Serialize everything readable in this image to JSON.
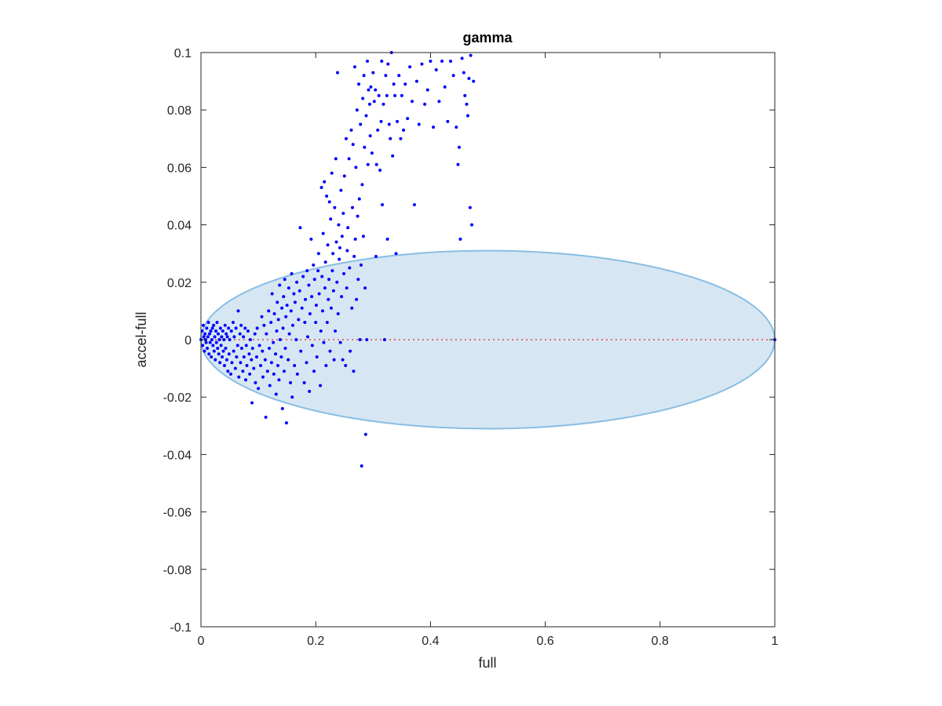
{
  "chart_data": {
    "type": "scatter",
    "title": "gamma",
    "xlabel": "full",
    "ylabel": "accel-full",
    "xlim": [
      0,
      1
    ],
    "ylim": [
      -0.1,
      0.1
    ],
    "xticks": [
      "0",
      "0.2",
      "0.4",
      "0.6",
      "0.8",
      "1"
    ],
    "yticks": [
      "-0.1",
      "-0.08",
      "-0.06",
      "-0.04",
      "-0.02",
      "0",
      "0.02",
      "0.04",
      "0.06",
      "0.08",
      "0.1"
    ],
    "grid": false,
    "legend": "none",
    "colors": {
      "points": "#0000ff",
      "ellipse_fill": "#d6e7f3",
      "ellipse_edge": "#88bde3",
      "reference_line": "#e8463f",
      "axes": "#262626"
    },
    "ellipse": {
      "center": [
        0.5,
        0
      ],
      "x_radius": 0.5,
      "y_radius": 0.031
    },
    "reference_line": {
      "y": 0,
      "x_range": [
        0,
        1
      ],
      "style": "dotted"
    },
    "points": [
      [
        0.0,
        0.0
      ],
      [
        0.002,
        0.003
      ],
      [
        0.003,
        -0.002
      ],
      [
        0.004,
        0.005
      ],
      [
        0.005,
        0.001
      ],
      [
        0.006,
        -0.004
      ],
      [
        0.007,
        0.002
      ],
      [
        0.008,
        0.0
      ],
      [
        0.009,
        -0.001
      ],
      [
        0.01,
        0.004
      ],
      [
        0.011,
        -0.003
      ],
      [
        0.012,
        0.001
      ],
      [
        0.013,
        0.006
      ],
      [
        0.014,
        -0.005
      ],
      [
        0.015,
        0.002
      ],
      [
        0.016,
        -0.001
      ],
      [
        0.017,
        0.003
      ],
      [
        0.018,
        -0.006
      ],
      [
        0.019,
        0.0
      ],
      [
        0.02,
        0.004
      ],
      [
        0.021,
        -0.002
      ],
      [
        0.022,
        0.005
      ],
      [
        0.023,
        -0.004
      ],
      [
        0.024,
        0.001
      ],
      [
        0.025,
        -0.007
      ],
      [
        0.026,
        0.003
      ],
      [
        0.027,
        -0.001
      ],
      [
        0.028,
        0.006
      ],
      [
        0.029,
        -0.003
      ],
      [
        0.03,
        0.002
      ],
      [
        0.031,
        -0.005
      ],
      [
        0.032,
        0.0
      ],
      [
        0.033,
        -0.008
      ],
      [
        0.034,
        0.004
      ],
      [
        0.035,
        -0.002
      ],
      [
        0.036,
        0.001
      ],
      [
        0.037,
        -0.006
      ],
      [
        0.038,
        0.003
      ],
      [
        0.039,
        -0.004
      ],
      [
        0.04,
        0.0
      ],
      [
        0.041,
        -0.009
      ],
      [
        0.042,
        0.005
      ],
      [
        0.043,
        -0.003
      ],
      [
        0.044,
        0.002
      ],
      [
        0.045,
        -0.007
      ],
      [
        0.046,
        0.001
      ],
      [
        0.047,
        -0.011
      ],
      [
        0.048,
        0.004
      ],
      [
        0.049,
        -0.005
      ],
      [
        0.05,
        0.0
      ],
      [
        0.052,
        -0.012
      ],
      [
        0.053,
        0.003
      ],
      [
        0.054,
        -0.008
      ],
      [
        0.056,
        0.006
      ],
      [
        0.057,
        -0.004
      ],
      [
        0.058,
        0.001
      ],
      [
        0.06,
        -0.01
      ],
      [
        0.061,
        0.004
      ],
      [
        0.062,
        -0.006
      ],
      [
        0.064,
        -0.002
      ],
      [
        0.065,
        0.01
      ],
      [
        0.066,
        -0.013
      ],
      [
        0.068,
        0.002
      ],
      [
        0.069,
        -0.008
      ],
      [
        0.07,
        0.005
      ],
      [
        0.071,
        -0.003
      ],
      [
        0.073,
        -0.011
      ],
      [
        0.074,
        0.001
      ],
      [
        0.075,
        -0.006
      ],
      [
        0.077,
        0.004
      ],
      [
        0.078,
        -0.014
      ],
      [
        0.079,
        -0.002
      ],
      [
        0.08,
        -0.009
      ],
      [
        0.082,
        0.003
      ],
      [
        0.084,
        -0.005
      ],
      [
        0.085,
        -0.012
      ],
      [
        0.086,
        0.0
      ],
      [
        0.088,
        -0.007
      ],
      [
        0.089,
        -0.022
      ],
      [
        0.09,
        -0.003
      ],
      [
        0.092,
        -0.01
      ],
      [
        0.094,
        0.002
      ],
      [
        0.095,
        -0.015
      ],
      [
        0.097,
        -0.006
      ],
      [
        0.098,
        0.004
      ],
      [
        0.1,
        -0.017
      ],
      [
        0.102,
        -0.002
      ],
      [
        0.104,
        -0.009
      ],
      [
        0.106,
        0.008
      ],
      [
        0.107,
        -0.004
      ],
      [
        0.108,
        -0.013
      ],
      [
        0.11,
        0.005
      ],
      [
        0.112,
        -0.007
      ],
      [
        0.113,
        -0.027
      ],
      [
        0.114,
        0.002
      ],
      [
        0.116,
        -0.011
      ],
      [
        0.118,
        0.01
      ],
      [
        0.119,
        -0.003
      ],
      [
        0.12,
        -0.016
      ],
      [
        0.122,
        0.006
      ],
      [
        0.123,
        -0.008
      ],
      [
        0.124,
        0.016
      ],
      [
        0.126,
        -0.001
      ],
      [
        0.127,
        -0.012
      ],
      [
        0.128,
        0.009
      ],
      [
        0.13,
        -0.005
      ],
      [
        0.131,
        -0.019
      ],
      [
        0.132,
        0.003
      ],
      [
        0.133,
        0.013
      ],
      [
        0.134,
        -0.009
      ],
      [
        0.135,
        0.007
      ],
      [
        0.136,
        -0.014
      ],
      [
        0.137,
        0.019
      ],
      [
        0.138,
        0.0
      ],
      [
        0.14,
        -0.006
      ],
      [
        0.141,
        0.011
      ],
      [
        0.142,
        -0.024
      ],
      [
        0.143,
        0.004
      ],
      [
        0.144,
        0.015
      ],
      [
        0.145,
        -0.011
      ],
      [
        0.146,
        0.021
      ],
      [
        0.147,
        -0.003
      ],
      [
        0.148,
        0.008
      ],
      [
        0.149,
        -0.029
      ],
      [
        0.15,
        0.012
      ],
      [
        0.152,
        -0.007
      ],
      [
        0.153,
        0.018
      ],
      [
        0.154,
        0.002
      ],
      [
        0.156,
        -0.015
      ],
      [
        0.157,
        0.01
      ],
      [
        0.158,
        0.023
      ],
      [
        0.159,
        -0.02
      ],
      [
        0.16,
        0.005
      ],
      [
        0.162,
        0.016
      ],
      [
        0.163,
        -0.009
      ],
      [
        0.164,
        0.013
      ],
      [
        0.166,
        0.0
      ],
      [
        0.167,
        0.02
      ],
      [
        0.168,
        -0.012
      ],
      [
        0.17,
        0.007
      ],
      [
        0.172,
        0.017
      ],
      [
        0.173,
        0.039
      ],
      [
        0.174,
        -0.004
      ],
      [
        0.176,
        0.011
      ],
      [
        0.178,
        0.022
      ],
      [
        0.18,
        -0.015
      ],
      [
        0.181,
        0.006
      ],
      [
        0.182,
        0.014
      ],
      [
        0.184,
        -0.008
      ],
      [
        0.185,
        0.024
      ],
      [
        0.186,
        0.001
      ],
      [
        0.188,
        0.019
      ],
      [
        0.189,
        -0.018
      ],
      [
        0.19,
        0.009
      ],
      [
        0.192,
        0.035
      ],
      [
        0.193,
        0.015
      ],
      [
        0.194,
        -0.002
      ],
      [
        0.196,
        0.026
      ],
      [
        0.197,
        -0.011
      ],
      [
        0.198,
        0.021
      ],
      [
        0.2,
        0.006
      ],
      [
        0.201,
        0.012
      ],
      [
        0.202,
        -0.006
      ],
      [
        0.204,
        0.024
      ],
      [
        0.205,
        0.03
      ],
      [
        0.206,
        0.016
      ],
      [
        0.208,
        -0.016
      ],
      [
        0.209,
        0.003
      ],
      [
        0.21,
        0.053
      ],
      [
        0.211,
        0.022
      ],
      [
        0.212,
        0.01
      ],
      [
        0.213,
        0.037
      ],
      [
        0.214,
        -0.001
      ],
      [
        0.215,
        0.055
      ],
      [
        0.216,
        0.018
      ],
      [
        0.217,
        0.027
      ],
      [
        0.218,
        -0.009
      ],
      [
        0.219,
        0.05
      ],
      [
        0.22,
        0.006
      ],
      [
        0.221,
        0.033
      ],
      [
        0.222,
        0.014
      ],
      [
        0.223,
        0.021
      ],
      [
        0.224,
        0.048
      ],
      [
        0.225,
        -0.004
      ],
      [
        0.226,
        0.042
      ],
      [
        0.227,
        0.011
      ],
      [
        0.228,
        0.058
      ],
      [
        0.229,
        0.024
      ],
      [
        0.23,
        0.03
      ],
      [
        0.231,
        0.017
      ],
      [
        0.232,
        -0.007
      ],
      [
        0.233,
        0.046
      ],
      [
        0.234,
        0.003
      ],
      [
        0.235,
        0.063
      ],
      [
        0.236,
        0.034
      ],
      [
        0.237,
        0.02
      ],
      [
        0.238,
        0.093
      ],
      [
        0.239,
        0.009
      ],
      [
        0.24,
        0.04
      ],
      [
        0.241,
        0.028
      ],
      [
        0.242,
        0.032
      ],
      [
        0.243,
        -0.001
      ],
      [
        0.244,
        0.052
      ],
      [
        0.245,
        0.015
      ],
      [
        0.246,
        0.036
      ],
      [
        0.247,
        -0.007
      ],
      [
        0.248,
        0.044
      ],
      [
        0.249,
        0.023
      ],
      [
        0.25,
        0.057
      ],
      [
        0.252,
        -0.009
      ],
      [
        0.253,
        0.07
      ],
      [
        0.254,
        0.018
      ],
      [
        0.255,
        0.031
      ],
      [
        0.256,
        0.039
      ],
      [
        0.258,
        0.063
      ],
      [
        0.259,
        0.025
      ],
      [
        0.26,
        -0.004
      ],
      [
        0.262,
        0.073
      ],
      [
        0.263,
        0.011
      ],
      [
        0.264,
        0.046
      ],
      [
        0.265,
        0.068
      ],
      [
        0.266,
        -0.011
      ],
      [
        0.267,
        0.029
      ],
      [
        0.268,
        0.095
      ],
      [
        0.269,
        0.035
      ],
      [
        0.27,
        0.06
      ],
      [
        0.271,
        0.014
      ],
      [
        0.272,
        0.08
      ],
      [
        0.273,
        0.043
      ],
      [
        0.274,
        0.021
      ],
      [
        0.275,
        0.089
      ],
      [
        0.276,
        0.049
      ],
      [
        0.277,
        0.0
      ],
      [
        0.278,
        0.075
      ],
      [
        0.279,
        0.026
      ],
      [
        0.28,
        -0.044
      ],
      [
        0.281,
        0.054
      ],
      [
        0.282,
        0.084
      ],
      [
        0.283,
        0.036
      ],
      [
        0.284,
        0.092
      ],
      [
        0.285,
        0.067
      ],
      [
        0.286,
        0.018
      ],
      [
        0.287,
        -0.033
      ],
      [
        0.288,
        0.078
      ],
      [
        0.289,
        0.0
      ],
      [
        0.29,
        0.097
      ],
      [
        0.291,
        0.061
      ],
      [
        0.292,
        0.087
      ],
      [
        0.294,
        0.082
      ],
      [
        0.295,
        0.071
      ],
      [
        0.296,
        0.088
      ],
      [
        0.298,
        0.065
      ],
      [
        0.3,
        0.093
      ],
      [
        0.302,
        0.083
      ],
      [
        0.304,
        0.087
      ],
      [
        0.305,
        0.029
      ],
      [
        0.306,
        0.061
      ],
      [
        0.308,
        0.073
      ],
      [
        0.31,
        0.085
      ],
      [
        0.312,
        0.059
      ],
      [
        0.314,
        0.076
      ],
      [
        0.315,
        0.097
      ],
      [
        0.316,
        0.047
      ],
      [
        0.318,
        0.082
      ],
      [
        0.32,
        0.0
      ],
      [
        0.322,
        0.092
      ],
      [
        0.324,
        0.085
      ],
      [
        0.325,
        0.035
      ],
      [
        0.326,
        0.096
      ],
      [
        0.328,
        0.075
      ],
      [
        0.33,
        0.07
      ],
      [
        0.332,
        0.1
      ],
      [
        0.334,
        0.064
      ],
      [
        0.336,
        0.089
      ],
      [
        0.338,
        0.085
      ],
      [
        0.34,
        0.03
      ],
      [
        0.342,
        0.076
      ],
      [
        0.345,
        0.092
      ],
      [
        0.348,
        0.07
      ],
      [
        0.35,
        0.085
      ],
      [
        0.353,
        0.073
      ],
      [
        0.356,
        0.089
      ],
      [
        0.36,
        0.077
      ],
      [
        0.364,
        0.095
      ],
      [
        0.368,
        0.083
      ],
      [
        0.372,
        0.047
      ],
      [
        0.376,
        0.09
      ],
      [
        0.38,
        0.075
      ],
      [
        0.385,
        0.096
      ],
      [
        0.39,
        0.082
      ],
      [
        0.395,
        0.087
      ],
      [
        0.4,
        0.097
      ],
      [
        0.405,
        0.074
      ],
      [
        0.41,
        0.094
      ],
      [
        0.415,
        0.083
      ],
      [
        0.42,
        0.097
      ],
      [
        0.425,
        0.088
      ],
      [
        0.43,
        0.076
      ],
      [
        0.435,
        0.097
      ],
      [
        0.44,
        0.092
      ],
      [
        0.445,
        0.074
      ],
      [
        0.448,
        0.061
      ],
      [
        0.45,
        0.067
      ],
      [
        0.452,
        0.035
      ],
      [
        0.455,
        0.098
      ],
      [
        0.458,
        0.093
      ],
      [
        0.46,
        0.085
      ],
      [
        0.463,
        0.082
      ],
      [
        0.465,
        0.078
      ],
      [
        0.467,
        0.091
      ],
      [
        0.469,
        0.046
      ],
      [
        0.47,
        0.099
      ],
      [
        0.472,
        0.04
      ],
      [
        0.475,
        0.09
      ],
      [
        1.0,
        0.0
      ]
    ]
  }
}
